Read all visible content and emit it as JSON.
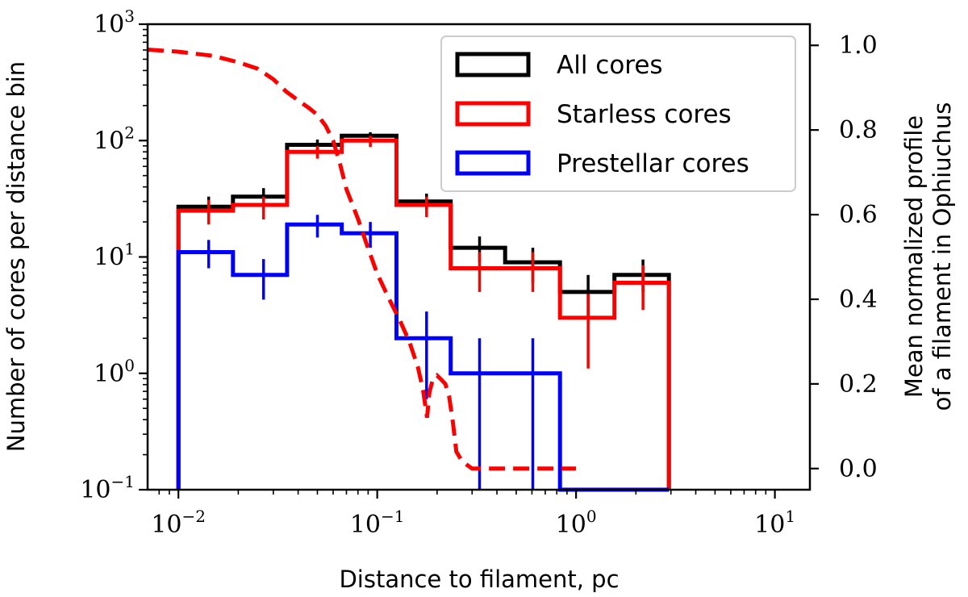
{
  "chart_data": {
    "type": "histogram-step",
    "xlabel": "Distance to filament, pc",
    "ylabel": "Number of cores per distance bin",
    "y2label_line1": "Mean normalized profile",
    "y2label_line2": "of a filament in Ophiuchus",
    "xscale": "log",
    "yscale": "log",
    "xlim": [
      0.007,
      15
    ],
    "ylim": [
      0.1,
      1000
    ],
    "y2lim": [
      -0.05,
      1.05
    ],
    "xticks": [
      {
        "value": 0.01,
        "base": "10",
        "exp": "−2"
      },
      {
        "value": 0.1,
        "base": "10",
        "exp": "−1"
      },
      {
        "value": 1,
        "base": "10",
        "exp": "0"
      },
      {
        "value": 10,
        "base": "10",
        "exp": "1"
      }
    ],
    "yticks": [
      {
        "value": 0.1,
        "base": "10",
        "exp": "−1"
      },
      {
        "value": 1,
        "base": "10",
        "exp": "0"
      },
      {
        "value": 10,
        "base": "10",
        "exp": "1"
      },
      {
        "value": 100,
        "base": "10",
        "exp": "2"
      },
      {
        "value": 1000,
        "base": "10",
        "exp": "3"
      }
    ],
    "y2ticks": [
      "0.0",
      "0.2",
      "0.4",
      "0.6",
      "0.8",
      "1.0"
    ],
    "y2tick_values": [
      0.0,
      0.2,
      0.4,
      0.6,
      0.8,
      1.0
    ],
    "bin_edges": [
      0.01,
      0.0188,
      0.0352,
      0.0663,
      0.125,
      0.234,
      0.44,
      0.83,
      1.56,
      2.93
    ],
    "series": [
      {
        "name": "All cores",
        "color": "#000000",
        "values": [
          27,
          33,
          92,
          110,
          30,
          12,
          9,
          5,
          7
        ],
        "err_markers": [
          {
            "x": 0.0142,
            "y": 27,
            "lo": 20,
            "hi": 33
          },
          {
            "x": 0.0268,
            "y": 33,
            "lo": 26,
            "hi": 39
          },
          {
            "x": 0.05,
            "y": 92,
            "lo": 80,
            "hi": 102
          },
          {
            "x": 0.0923,
            "y": 110,
            "lo": 98,
            "hi": 118
          },
          {
            "x": 0.177,
            "y": 30,
            "lo": 25,
            "hi": 35
          },
          {
            "x": 0.327,
            "y": 12,
            "lo": 9,
            "hi": 15
          },
          {
            "x": 0.606,
            "y": 9,
            "lo": 6,
            "hi": 12
          },
          {
            "x": 1.15,
            "y": 5,
            "lo": 3,
            "hi": 7
          },
          {
            "x": 2.17,
            "y": 7,
            "lo": 5,
            "hi": 9.5
          }
        ]
      },
      {
        "name": "Starless cores",
        "color": "#ff0000",
        "values": [
          25,
          28,
          80,
          100,
          28,
          8,
          8,
          3,
          6
        ],
        "err_markers": [
          {
            "x": 0.0142,
            "y": 25,
            "lo": 19,
            "hi": 31
          },
          {
            "x": 0.0268,
            "y": 28,
            "lo": 21,
            "hi": 33
          },
          {
            "x": 0.05,
            "y": 80,
            "lo": 70,
            "hi": 90
          },
          {
            "x": 0.0923,
            "y": 100,
            "lo": 88,
            "hi": 110
          },
          {
            "x": 0.177,
            "y": 28,
            "lo": 22,
            "hi": 33
          },
          {
            "x": 0.327,
            "y": 8,
            "lo": 5,
            "hi": 11
          },
          {
            "x": 0.606,
            "y": 8,
            "lo": 5,
            "hi": 11
          },
          {
            "x": 1.15,
            "y": 3,
            "lo": 1.1,
            "hi": 4.8
          },
          {
            "x": 2.17,
            "y": 6,
            "lo": 3.5,
            "hi": 8.5
          }
        ]
      },
      {
        "name": "Prestellar cores",
        "color": "#0000ff",
        "values": [
          11,
          7,
          19,
          16,
          2,
          1,
          1,
          0.1,
          0.1
        ],
        "err_markers": [
          {
            "x": 0.0142,
            "y": 11,
            "lo": 8,
            "hi": 14
          },
          {
            "x": 0.0268,
            "y": 7,
            "lo": 4.3,
            "hi": 9.6
          },
          {
            "x": 0.05,
            "y": 19,
            "lo": 14.7,
            "hi": 23
          },
          {
            "x": 0.0923,
            "y": 16,
            "lo": 12,
            "hi": 20
          },
          {
            "x": 0.177,
            "y": 2,
            "lo": 0.6,
            "hi": 3.4
          },
          {
            "x": 0.327,
            "y": 1,
            "lo": 0.1,
            "hi": 2
          },
          {
            "x": 0.606,
            "y": 1,
            "lo": 0.1,
            "hi": 2
          }
        ]
      }
    ],
    "profile": {
      "axis": "right",
      "color": "#ff0000",
      "style": "dashed",
      "points": [
        [
          0.007,
          0.99
        ],
        [
          0.01,
          0.985
        ],
        [
          0.015,
          0.975
        ],
        [
          0.02,
          0.96
        ],
        [
          0.025,
          0.945
        ],
        [
          0.03,
          0.92
        ],
        [
          0.035,
          0.89
        ],
        [
          0.04,
          0.87
        ],
        [
          0.045,
          0.853
        ],
        [
          0.05,
          0.836
        ],
        [
          0.055,
          0.81
        ],
        [
          0.06,
          0.775
        ],
        [
          0.065,
          0.72
        ],
        [
          0.07,
          0.66
        ],
        [
          0.08,
          0.59
        ],
        [
          0.09,
          0.52
        ],
        [
          0.1,
          0.46
        ],
        [
          0.115,
          0.4
        ],
        [
          0.13,
          0.35
        ],
        [
          0.145,
          0.3
        ],
        [
          0.16,
          0.24
        ],
        [
          0.17,
          0.185
        ],
        [
          0.178,
          0.12
        ],
        [
          0.183,
          0.18
        ],
        [
          0.19,
          0.21
        ],
        [
          0.2,
          0.22
        ],
        [
          0.21,
          0.21
        ],
        [
          0.22,
          0.2
        ],
        [
          0.23,
          0.17
        ],
        [
          0.24,
          0.11
        ],
        [
          0.25,
          0.04
        ],
        [
          0.265,
          0.02
        ],
        [
          0.28,
          0.01
        ],
        [
          0.3,
          0.0
        ],
        [
          0.5,
          0.0
        ],
        [
          1.0,
          0.0
        ]
      ]
    },
    "legend": {
      "position": "top-right",
      "entries": [
        {
          "label": "All cores",
          "color": "#000000"
        },
        {
          "label": "Starless cores",
          "color": "#ff0000"
        },
        {
          "label": "Prestellar cores",
          "color": "#0000ff"
        }
      ]
    }
  }
}
